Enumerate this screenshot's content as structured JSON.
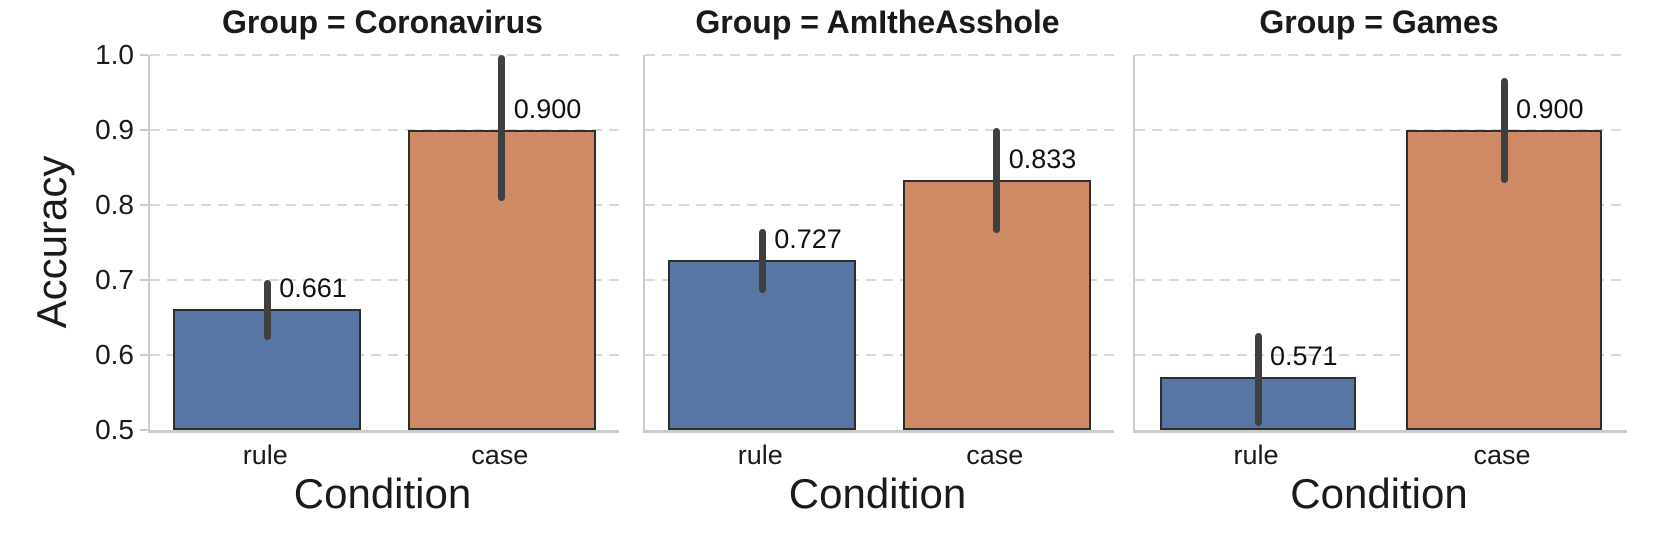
{
  "figure": {
    "background": "#ffffff"
  },
  "chart_data": {
    "type": "bar",
    "facet_by": "Group",
    "title": "",
    "xlabel": "Condition",
    "ylabel": "Accuracy",
    "categories": [
      "rule",
      "case"
    ],
    "ylim": [
      0.5,
      1.0
    ],
    "yticks": [
      {
        "value": 1.0,
        "label": "1.0"
      },
      {
        "value": 0.9,
        "label": "0.9"
      },
      {
        "value": 0.8,
        "label": "0.8"
      },
      {
        "value": 0.7,
        "label": "0.7"
      },
      {
        "value": 0.6,
        "label": "0.6"
      },
      {
        "value": 0.5,
        "label": "0.5"
      }
    ],
    "grid": true,
    "gridline_values": [
      1.0,
      0.9,
      0.8,
      0.7,
      0.6
    ],
    "legend_position": "none",
    "colors": {
      "rule_bar": "#5876a4",
      "case_bar": "#cd8a64",
      "bar_edge": "#2e2e2e",
      "error_bar": "#3f3f3f",
      "gridline": "#d9d9d9",
      "spine": "#cccccc",
      "text": "#1a1a1a"
    },
    "facets": [
      {
        "title": "Group = Coronavirus",
        "series": [
          {
            "category": "rule",
            "value": 0.661,
            "label": "0.661",
            "ci_low": 0.62,
            "ci_high": 0.7
          },
          {
            "category": "case",
            "value": 0.9,
            "label": "0.900",
            "ci_low": 0.806,
            "ci_high": 1.0
          }
        ]
      },
      {
        "title": "Group = AmItheAsshole",
        "series": [
          {
            "category": "rule",
            "value": 0.727,
            "label": "0.727",
            "ci_low": 0.683,
            "ci_high": 0.768
          },
          {
            "category": "case",
            "value": 0.833,
            "label": "0.833",
            "ci_low": 0.763,
            "ci_high": 0.903
          }
        ]
      },
      {
        "title": "Group = Games",
        "series": [
          {
            "category": "rule",
            "value": 0.571,
            "label": "0.571",
            "ci_low": 0.505,
            "ci_high": 0.629
          },
          {
            "category": "case",
            "value": 0.9,
            "label": "0.900",
            "ci_low": 0.829,
            "ci_high": 0.969
          }
        ]
      }
    ]
  }
}
